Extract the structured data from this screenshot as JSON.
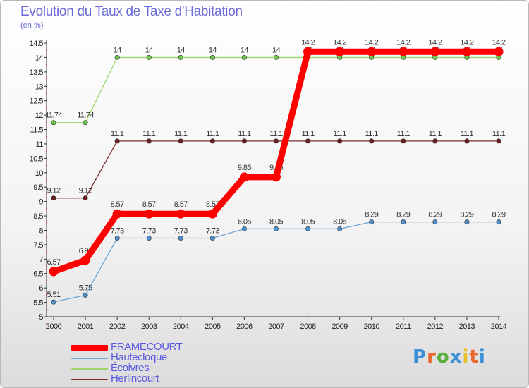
{
  "header": {
    "title": "Evolution du Taux de Taxe d'Habitation",
    "subtitle": "(en %)"
  },
  "brand": {
    "text": "Proxiti",
    "colors": [
      "#3a8fd8",
      "#e8672a",
      "#59b03a",
      "#3a8fd8",
      "#e8c22a",
      "#e8672a",
      "#3a8fd8"
    ]
  },
  "chart_data": {
    "type": "line",
    "title": "Evolution du Taux de Taxe d'Habitation",
    "subtitle": "(en %)",
    "xlabel": "",
    "ylabel": "",
    "ylim": [
      5,
      14.5
    ],
    "ytick_step": 0.5,
    "grid": false,
    "legend_position": "bottom-left",
    "x": [
      "2000",
      "2001",
      "2002",
      "2003",
      "2004",
      "2005",
      "2006",
      "2007",
      "2008",
      "2009",
      "2010",
      "2011",
      "2012",
      "2013",
      "2014"
    ],
    "series": [
      {
        "name": "FRAMECOURT",
        "color": "#ff0000",
        "emphasis": true,
        "values": [
          6.57,
          6.96,
          8.57,
          8.57,
          8.57,
          8.57,
          9.85,
          9.85,
          14.2,
          14.2,
          14.2,
          14.2,
          14.2,
          14.2,
          14.2
        ],
        "labels": [
          "6.57",
          "6.96",
          "8.57",
          "8.57",
          "8.57",
          "8.57",
          "9.85",
          "9.85",
          "14.2",
          "14.2",
          "14.2",
          "14.2",
          "14.2",
          "14.2",
          "14.2"
        ]
      },
      {
        "name": "Hautecloque",
        "color": "#6fa6d6",
        "marker_color": "#4e8fcb",
        "values": [
          5.51,
          5.75,
          7.73,
          7.73,
          7.73,
          7.73,
          8.05,
          8.05,
          8.05,
          8.05,
          8.29,
          8.29,
          8.29,
          8.29,
          8.29
        ],
        "labels": [
          "5.51",
          "5.75",
          "7.73",
          "7.73",
          "7.73",
          "7.73",
          "8.05",
          "8.05",
          "8.05",
          "8.05",
          "8.29",
          "8.29",
          "8.29",
          "8.29",
          "8.29"
        ]
      },
      {
        "name": "Écoivres",
        "color": "#9cd66b",
        "marker_color": "#6cc44a",
        "values": [
          11.74,
          11.74,
          14,
          14,
          14,
          14,
          14,
          14,
          14,
          14,
          14,
          14,
          14,
          14,
          14
        ],
        "labels": [
          "11.74",
          "11.74",
          "14",
          "14",
          "14",
          "14",
          "14",
          "14",
          "14",
          "14",
          "14",
          "14",
          "14",
          "14",
          "14"
        ]
      },
      {
        "name": "Herlincourt",
        "color": "#7a2b2b",
        "marker_color": "#6b1f1f",
        "values": [
          9.12,
          9.12,
          11.1,
          11.1,
          11.1,
          11.1,
          11.1,
          11.1,
          11.1,
          11.1,
          11.1,
          11.1,
          11.1,
          11.1,
          11.1
        ],
        "labels": [
          "9.12",
          "9.12",
          "11.1",
          "11.1",
          "11.1",
          "11.1",
          "11.1",
          "11.1",
          "11.1",
          "11.1",
          "11.1",
          "11.1",
          "11.1",
          "11.1",
          "11.1"
        ]
      }
    ]
  }
}
